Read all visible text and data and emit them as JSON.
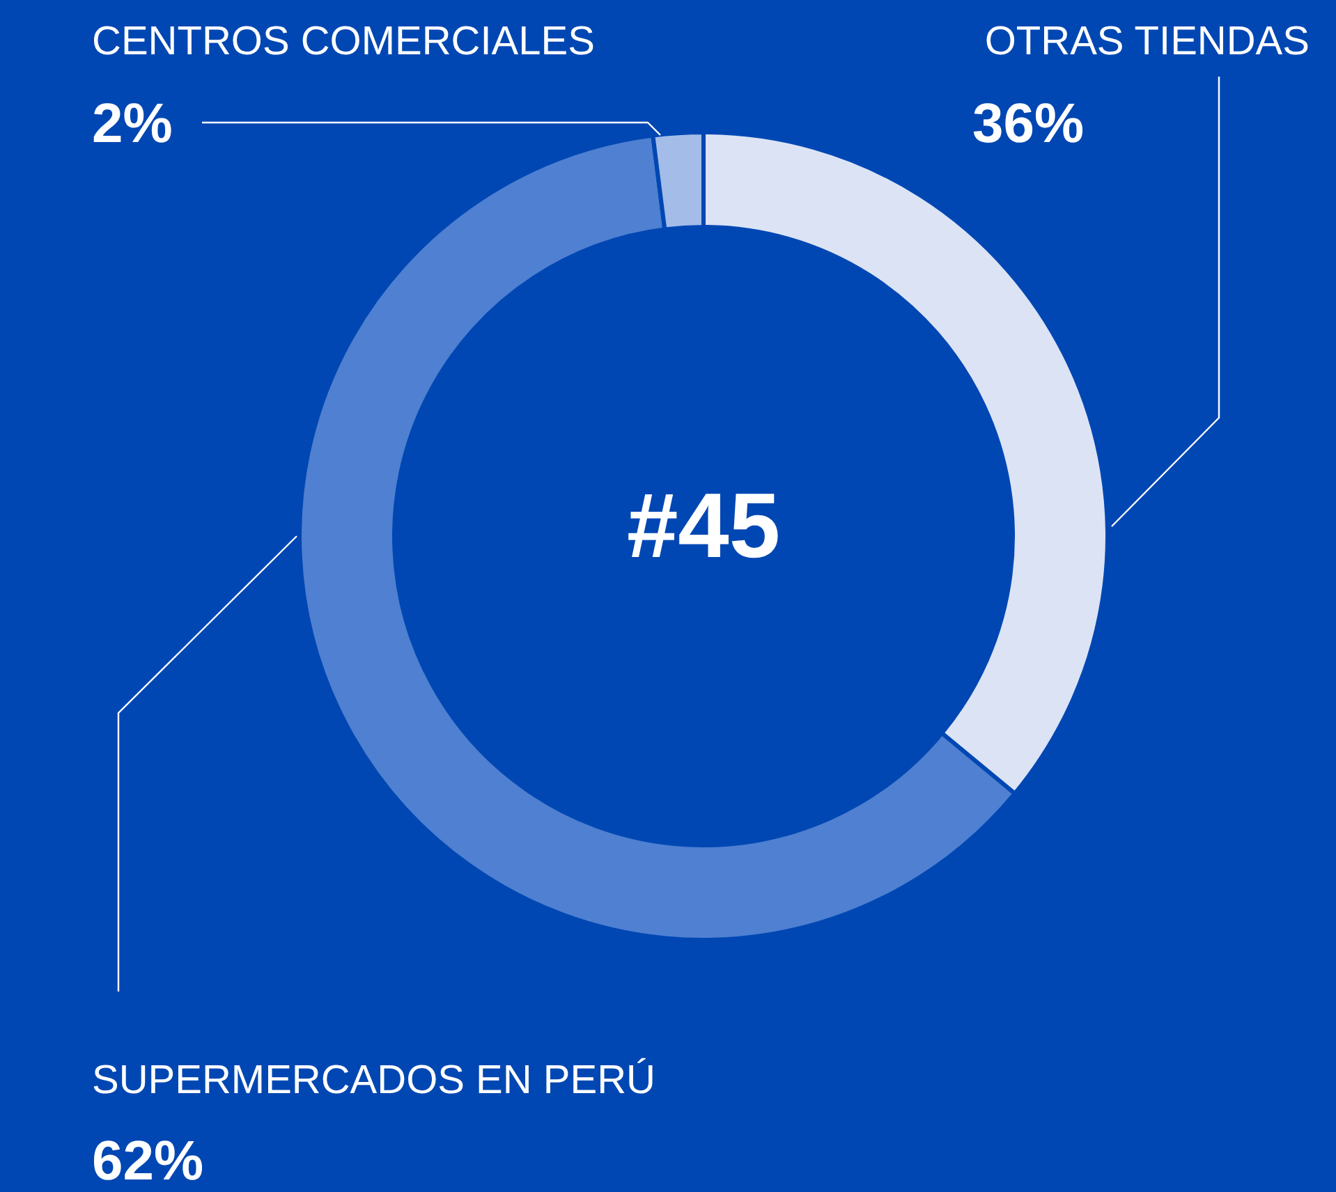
{
  "chart_data": {
    "type": "donut",
    "categories": [
      "OTRAS TIENDAS",
      "SUPERMERCADOS EN PERÚ",
      "CENTROS COMERCIALES"
    ],
    "values": [
      36,
      62,
      2
    ],
    "colors": [
      "#dbe3f5",
      "#4f80d1",
      "#a3bde8"
    ],
    "value_labels": [
      "36%",
      "62%",
      "2%"
    ],
    "annotations": [
      "#45"
    ]
  }
}
